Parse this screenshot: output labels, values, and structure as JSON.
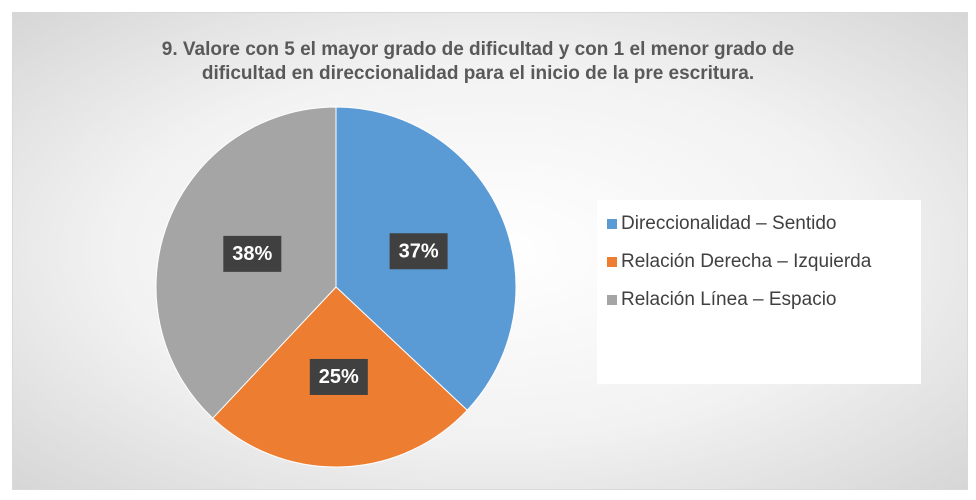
{
  "chart_data": {
    "type": "pie",
    "title": "9. Valore con 5 el mayor grado de dificultad y con 1 el menor grado de dificultad en direccionalidad para el inicio de la pre escritura.",
    "categories": [
      "Direccionalidad – Sentido",
      "Relación Derecha – Izquierda",
      "Relación Línea – Espacio"
    ],
    "values": [
      37,
      25,
      38
    ],
    "value_labels": [
      "37%",
      "25%",
      "38%"
    ],
    "colors": [
      "#5b9bd5",
      "#ed7d31",
      "#a5a5a5"
    ],
    "legend": "right"
  }
}
